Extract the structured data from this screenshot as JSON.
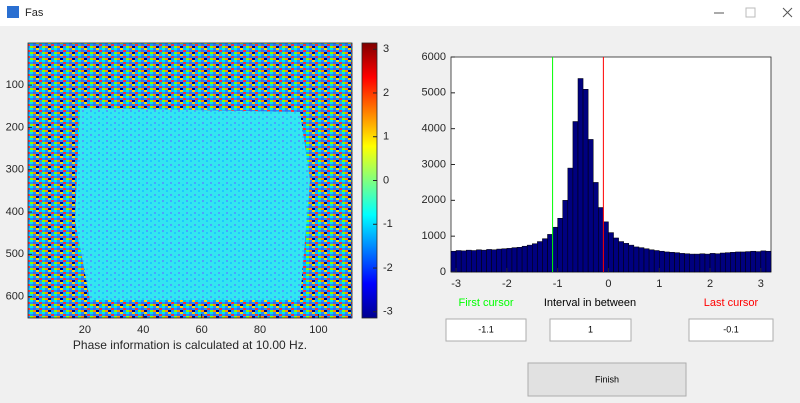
{
  "window": {
    "title": "Fas"
  },
  "chart_data": [
    {
      "type": "heatmap",
      "xlabel": "Phase information is calculated at 10.00 Hz.",
      "xlim": [
        0.5,
        111.5
      ],
      "ylim": [
        0.5,
        650.5
      ],
      "y_reversed": true,
      "xticks": [
        20,
        40,
        60,
        80,
        100
      ],
      "yticks": [
        100,
        200,
        300,
        400,
        500,
        600
      ],
      "colormap": "jet",
      "clim": [
        -3.1416,
        3.1416
      ],
      "cticks": [
        -3,
        -2,
        -1,
        0,
        1,
        2,
        3
      ]
    },
    {
      "type": "histogram",
      "color": "#00007f",
      "bins": [
        -3.1,
        -3.0,
        -2.9,
        -2.8,
        -2.7,
        -2.6,
        -2.5,
        -2.4,
        -2.3,
        -2.2,
        -2.1,
        -2.0,
        -1.9,
        -1.8,
        -1.7,
        -1.6,
        -1.5,
        -1.4,
        -1.3,
        -1.2,
        -1.1,
        -1.0,
        -0.9,
        -0.8,
        -0.7,
        -0.6,
        -0.5,
        -0.4,
        -0.3,
        -0.2,
        -0.1,
        0.0,
        0.1,
        0.2,
        0.3,
        0.4,
        0.5,
        0.6,
        0.7,
        0.8,
        0.9,
        1.0,
        1.1,
        1.2,
        1.3,
        1.4,
        1.5,
        1.6,
        1.7,
        1.8,
        1.9,
        2.0,
        2.1,
        2.2,
        2.3,
        2.4,
        2.5,
        2.6,
        2.7,
        2.8,
        2.9,
        3.0,
        3.1,
        3.2
      ],
      "values": [
        580,
        600,
        590,
        610,
        600,
        620,
        610,
        630,
        620,
        640,
        650,
        660,
        680,
        690,
        720,
        750,
        790,
        850,
        930,
        1050,
        1250,
        1500,
        2000,
        2900,
        4200,
        5400,
        5100,
        3700,
        2500,
        1800,
        1400,
        1100,
        950,
        850,
        800,
        750,
        700,
        680,
        650,
        620,
        600,
        580,
        560,
        550,
        540,
        520,
        510,
        500,
        500,
        510,
        500,
        520,
        510,
        530,
        540,
        550,
        560,
        560,
        570,
        580,
        570,
        590,
        580
      ],
      "xlim": [
        -3.1,
        3.2
      ],
      "ylim": [
        0,
        6000
      ],
      "xticks": [
        -3,
        -2,
        -1,
        0,
        1,
        2,
        3
      ],
      "yticks": [
        0,
        1000,
        2000,
        3000,
        4000,
        5000,
        6000
      ]
    }
  ],
  "controls": {
    "first_cursor": {
      "label": "First cursor",
      "value": -1.1,
      "color": "#00ff00"
    },
    "interval": {
      "label": "Interval in between",
      "value": 1
    },
    "last_cursor": {
      "label": "Last cursor",
      "value": -0.1,
      "color": "#ff0000"
    },
    "finish": "Finish"
  }
}
